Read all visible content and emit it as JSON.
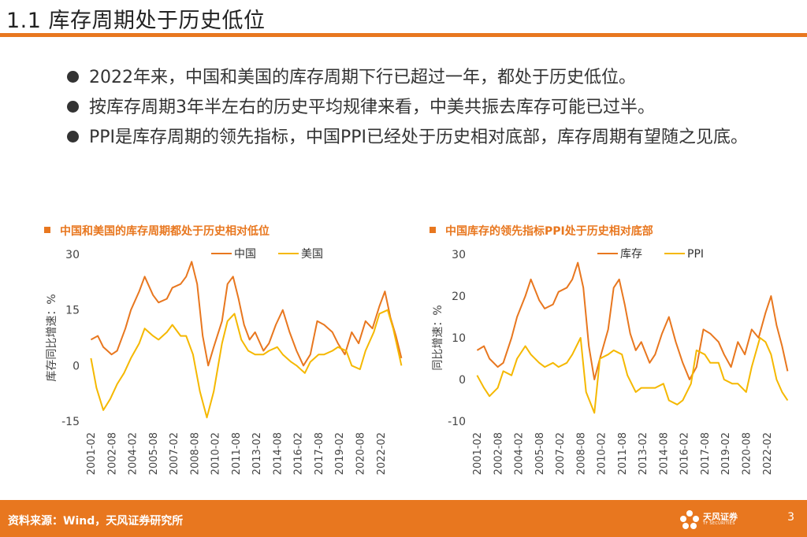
{
  "header": {
    "title": "1.1 库存周期处于历史低位"
  },
  "bullets": [
    "2022年来，中国和美国的库存周期下行已超过一年，都处于历史低位。",
    "按库存周期3年半左右的历史平均规律来看，中美共振去库存可能已过半。",
    "PPI是库存周期的领先指标，中国PPI已经处于历史相对底部，库存周期有望随之见底。"
  ],
  "footer": {
    "source": "资料来源：Wind，天风证券研究所",
    "page": "3",
    "logo_name": "天风证券",
    "logo_sub": "TF SECURITIES"
  },
  "colors": {
    "accent": "#e8771f",
    "series_orange": "#e8771f",
    "series_yellow": "#f5b800"
  },
  "chart_data": [
    {
      "type": "line",
      "title": "中国和美国的库存周期都处于历史相对低位",
      "ylabel": "库存同比增速：%",
      "ylim": [
        -15,
        30
      ],
      "yticks": [
        -15,
        0,
        15,
        30
      ],
      "xlim": [
        2001.08,
        2023.75
      ],
      "xticklabels": [
        "2001-02",
        "2002-08",
        "2004-02",
        "2005-08",
        "2007-02",
        "2008-08",
        "2010-02",
        "2011-08",
        "2013-02",
        "2014-08",
        "2016-02",
        "2017-08",
        "2019-02",
        "2020-08",
        "2022-02"
      ],
      "xtickvalues": [
        2001.08,
        2002.58,
        2004.08,
        2005.58,
        2007.08,
        2008.58,
        2010.08,
        2011.58,
        2013.08,
        2014.58,
        2016.08,
        2017.58,
        2019.08,
        2020.58,
        2022.08
      ],
      "series": [
        {
          "name": "中国",
          "color": "#e8771f",
          "x": [
            2001.1,
            2001.6,
            2002.0,
            2002.6,
            2003.0,
            2003.6,
            2004.0,
            2004.6,
            2005.0,
            2005.6,
            2006.0,
            2006.6,
            2007.0,
            2007.6,
            2008.0,
            2008.4,
            2008.8,
            2009.2,
            2009.6,
            2010.0,
            2010.6,
            2011.0,
            2011.4,
            2011.8,
            2012.2,
            2012.6,
            2013.0,
            2013.6,
            2014.0,
            2014.5,
            2015.0,
            2015.5,
            2016.0,
            2016.5,
            2017.0,
            2017.5,
            2018.0,
            2018.6,
            2019.0,
            2019.5,
            2020.0,
            2020.5,
            2021.0,
            2021.5,
            2022.0,
            2022.4,
            2022.8,
            2023.2,
            2023.6
          ],
          "values": [
            7,
            8,
            5,
            3,
            4,
            10,
            15,
            20,
            24,
            19,
            17,
            18,
            21,
            22,
            24,
            28,
            22,
            8,
            0,
            5,
            12,
            22,
            24,
            18,
            11,
            7,
            9,
            4,
            6,
            11,
            15,
            9,
            4,
            0,
            3,
            12,
            11,
            9,
            6,
            3,
            9,
            6,
            12,
            10,
            16,
            20,
            13,
            8,
            2
          ]
        },
        {
          "name": "美国",
          "color": "#f5b800",
          "x": [
            2001.1,
            2001.5,
            2002.0,
            2002.5,
            2003.0,
            2003.5,
            2004.0,
            2004.6,
            2005.0,
            2005.6,
            2006.0,
            2006.6,
            2007.0,
            2007.6,
            2008.0,
            2008.5,
            2009.0,
            2009.5,
            2010.0,
            2010.6,
            2011.0,
            2011.5,
            2012.0,
            2012.5,
            2013.0,
            2013.6,
            2014.0,
            2014.6,
            2015.0,
            2015.6,
            2016.0,
            2016.6,
            2017.0,
            2017.6,
            2018.0,
            2018.6,
            2019.0,
            2019.6,
            2020.0,
            2020.6,
            2021.0,
            2021.6,
            2022.0,
            2022.6,
            2023.0,
            2023.6
          ],
          "values": [
            2,
            -6,
            -12,
            -9,
            -5,
            -2,
            2,
            6,
            10,
            8,
            7,
            9,
            11,
            8,
            8,
            3,
            -7,
            -14,
            -7,
            6,
            12,
            14,
            7,
            4,
            3,
            3,
            4,
            5,
            3,
            1,
            0,
            -2,
            1,
            3,
            3,
            4,
            5,
            4,
            0,
            -1,
            4,
            9,
            14,
            15,
            10,
            0
          ]
        }
      ]
    },
    {
      "type": "line",
      "title": "中国库存的领先指标PPI处于历史相对底部",
      "ylabel": "同比增速：%",
      "ylim": [
        -10,
        30
      ],
      "yticks": [
        -10,
        0,
        10,
        20,
        30
      ],
      "xlim": [
        2001.08,
        2023.75
      ],
      "xticklabels": [
        "2001-02",
        "2002-08",
        "2004-02",
        "2005-08",
        "2007-02",
        "2008-08",
        "2010-02",
        "2011-08",
        "2013-02",
        "2014-08",
        "2016-02",
        "2017-08",
        "2019-02",
        "2020-08",
        "2022-02"
      ],
      "xtickvalues": [
        2001.08,
        2002.58,
        2004.08,
        2005.58,
        2007.08,
        2008.58,
        2010.08,
        2011.58,
        2013.08,
        2014.58,
        2016.08,
        2017.58,
        2019.08,
        2020.58,
        2022.08
      ],
      "series": [
        {
          "name": "库存",
          "color": "#e8771f",
          "x": [
            2001.1,
            2001.6,
            2002.0,
            2002.6,
            2003.0,
            2003.6,
            2004.0,
            2004.6,
            2005.0,
            2005.6,
            2006.0,
            2006.6,
            2007.0,
            2007.6,
            2008.0,
            2008.4,
            2008.8,
            2009.2,
            2009.6,
            2010.0,
            2010.6,
            2011.0,
            2011.4,
            2011.8,
            2012.2,
            2012.6,
            2013.0,
            2013.6,
            2014.0,
            2014.5,
            2015.0,
            2015.5,
            2016.0,
            2016.5,
            2017.0,
            2017.5,
            2018.0,
            2018.6,
            2019.0,
            2019.5,
            2020.0,
            2020.5,
            2021.0,
            2021.5,
            2022.0,
            2022.4,
            2022.8,
            2023.2,
            2023.6
          ],
          "values": [
            7,
            8,
            5,
            3,
            4,
            10,
            15,
            20,
            24,
            19,
            17,
            18,
            21,
            22,
            24,
            28,
            22,
            8,
            0,
            5,
            12,
            22,
            24,
            18,
            11,
            7,
            9,
            4,
            6,
            11,
            15,
            9,
            4,
            0,
            3,
            12,
            11,
            9,
            6,
            3,
            9,
            6,
            12,
            10,
            16,
            20,
            13,
            8,
            2
          ]
        },
        {
          "name": "PPI",
          "color": "#f5b800",
          "x": [
            2001.1,
            2001.6,
            2002.0,
            2002.6,
            2003.0,
            2003.6,
            2004.0,
            2004.6,
            2005.0,
            2005.6,
            2006.0,
            2006.6,
            2007.0,
            2007.6,
            2008.0,
            2008.6,
            2009.0,
            2009.6,
            2010.0,
            2010.6,
            2011.0,
            2011.6,
            2012.0,
            2012.6,
            2013.0,
            2013.6,
            2014.0,
            2014.6,
            2015.0,
            2015.6,
            2016.0,
            2016.6,
            2017.0,
            2017.6,
            2018.0,
            2018.6,
            2019.0,
            2019.6,
            2020.0,
            2020.6,
            2021.0,
            2021.6,
            2022.0,
            2022.4,
            2022.8,
            2023.2,
            2023.6
          ],
          "values": [
            1,
            -2,
            -4,
            -2,
            2,
            1,
            5,
            8,
            6,
            4,
            3,
            4,
            3,
            4,
            6,
            10,
            -3,
            -8,
            5,
            6,
            7,
            6,
            1,
            -3,
            -2,
            -2,
            -2,
            -1,
            -5,
            -6,
            -5,
            -1,
            7,
            6,
            4,
            4,
            0,
            -1,
            -1,
            -3,
            3,
            10,
            9,
            6,
            0,
            -3,
            -5
          ]
        }
      ]
    }
  ]
}
